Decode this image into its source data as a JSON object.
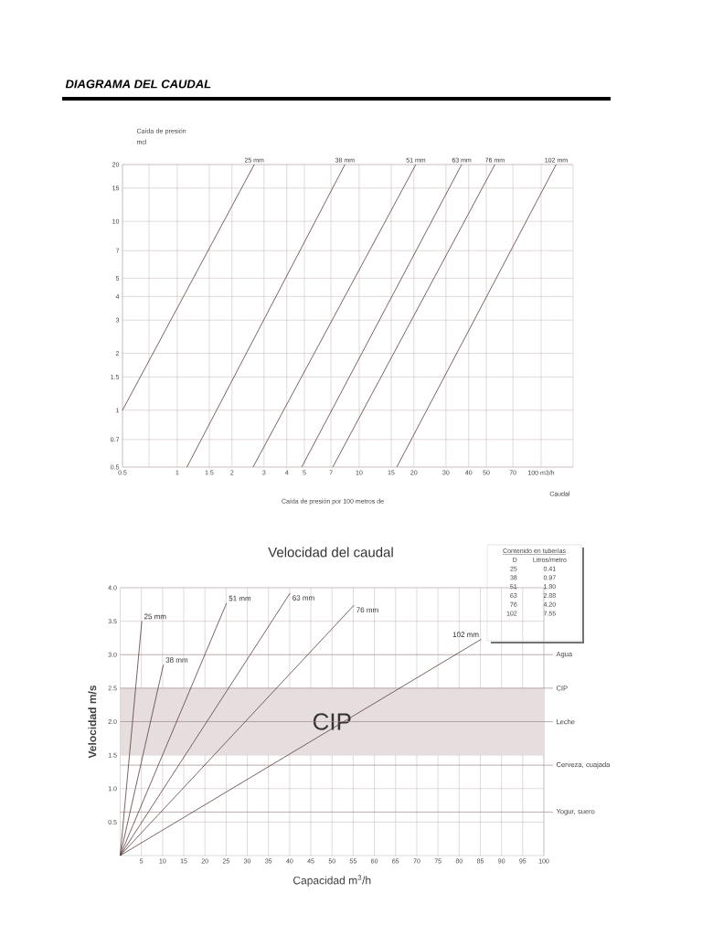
{
  "chart_data": [
    {
      "type": "line",
      "title": "DIAGRAMA DEL CAUDAL",
      "ylabel": "Caída de presión mcl",
      "xlabel": "Caudal",
      "annotations": [
        "Caída de presión por 100 metros de"
      ],
      "log": "xy",
      "grid": true,
      "marker": "none",
      "line_style": "solid",
      "xlim": [
        0.5,
        150
      ],
      "ylim": [
        0.5,
        20
      ],
      "xticks": [
        0.5,
        {
          "value": 0.7,
          "label": null
        },
        1,
        1.5,
        2,
        3,
        4,
        5,
        7,
        10,
        15,
        20,
        30,
        40,
        50,
        70,
        {
          "value": 100,
          "label": "100 m3/h"
        }
      ],
      "yticks": [
        0.5,
        0.7,
        1,
        1.5,
        2,
        3,
        4,
        5,
        7,
        10,
        15,
        20
      ],
      "series": [
        {
          "name": "25 mm",
          "color": "#5a3c3c",
          "x": [
            0.5,
            2.65
          ],
          "values": [
            1,
            20
          ]
        },
        {
          "name": "38 mm",
          "color": "#5a3c3c",
          "x": [
            1.13,
            8.35
          ],
          "values": [
            0.5,
            20
          ]
        },
        {
          "name": "51 mm",
          "color": "#5a3c3c",
          "x": [
            2.61,
            20.5
          ],
          "values": [
            0.5,
            20
          ]
        },
        {
          "name": "63 mm",
          "color": "#5a3c3c",
          "x": [
            4.83,
            36.6
          ],
          "values": [
            0.5,
            20
          ]
        },
        {
          "name": "76 mm",
          "color": "#5a3c3c",
          "x": [
            7.16,
            55.7
          ],
          "values": [
            0.5,
            20
          ]
        },
        {
          "name": "102 mm",
          "color": "#5a3c3c",
          "x": [
            16.1,
            121
          ],
          "values": [
            0.5,
            20
          ]
        }
      ]
    },
    {
      "type": "line",
      "title": "Velocidad del caudal",
      "xlabel": "Capacidad m$^{3}$/h",
      "ylabel": "Velocidad m/s",
      "annotations": [
        "Contenido en tuberías",
        "D",
        "Litros/metro",
        "25",
        "0.41",
        "38",
        "0.97",
        "51",
        "1.80",
        "63",
        "2.88",
        "76",
        "4.20",
        "102",
        "7.55"
      ],
      "grid": true,
      "marker": "none",
      "line_style": "solid",
      "xlim": [
        0,
        100
      ],
      "ylim": [
        0,
        4
      ],
      "xticks": [
        5,
        10,
        15,
        20,
        25,
        30,
        35,
        40,
        45,
        50,
        55,
        60,
        65,
        70,
        75,
        80,
        85,
        90,
        95,
        100
      ],
      "yticks": [
        0.5,
        {
          "value": 1,
          "label": "1.0"
        },
        1.5,
        {
          "value": 2,
          "label": "2.0"
        },
        2.5,
        {
          "value": 3,
          "label": "3.0"
        },
        3.5,
        {
          "value": 4,
          "label": "4.0"
        }
      ],
      "series": [
        {
          "name": "25 mm",
          "color": "#5a3c3c",
          "x": [
            0,
            5.1
          ],
          "values": [
            0,
            3.5
          ]
        },
        {
          "name": "38 mm",
          "color": "#5a3c3c",
          "x": [
            0,
            10.2
          ],
          "values": [
            0,
            2.85
          ]
        },
        {
          "name": "51 mm",
          "color": "#5a3c3c",
          "x": [
            0,
            25.1
          ],
          "values": [
            0,
            3.77
          ]
        },
        {
          "name": "63 mm",
          "color": "#5a3c3c",
          "x": [
            0,
            40.1
          ],
          "values": [
            0,
            3.92
          ]
        },
        {
          "name": "76 mm",
          "color": "#5a3c3c",
          "x": [
            0,
            55.2
          ],
          "values": [
            0,
            3.74
          ]
        },
        {
          "name": "102 mm",
          "color": "#5a3c3c",
          "x": [
            0,
            85.2
          ],
          "values": [
            0,
            3.23
          ]
        }
      ],
      "bands": [
        {
          "axis": "y",
          "from": 1.5,
          "to": 2.5,
          "label": "CIP",
          "color": "#e6dede"
        }
      ],
      "ref_lines": [
        {
          "axis": "y",
          "value": 3.0,
          "label": "Agua",
          "color": "#a08888"
        },
        {
          "axis": "y",
          "value": 2.5,
          "label": "CIP",
          "color": "#a08888"
        },
        {
          "axis": "y",
          "value": 2.0,
          "label": "Leche",
          "color": "#a08888"
        },
        {
          "axis": "y",
          "value": 1.35,
          "label": "Cerveza, cuajada",
          "color": "#a08888"
        },
        {
          "axis": "y",
          "value": 0.65,
          "label": "Yogur, suero",
          "color": "#a08888"
        }
      ]
    }
  ]
}
